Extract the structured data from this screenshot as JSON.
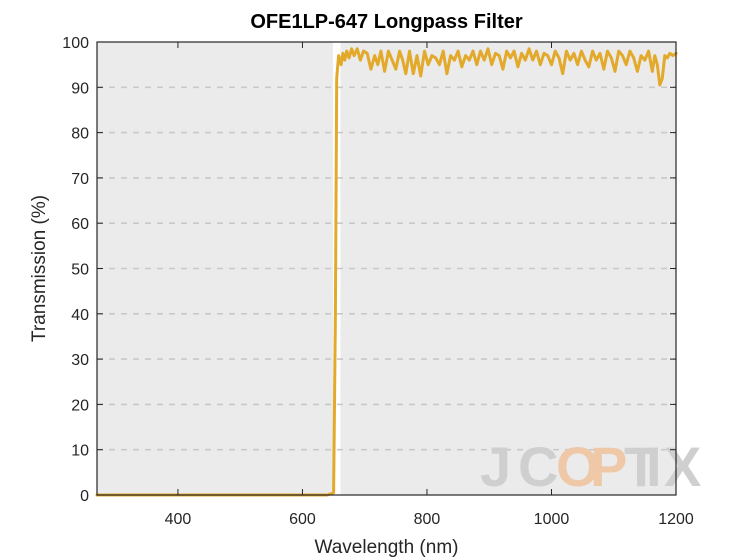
{
  "chart_data": {
    "type": "line",
    "title": "OFE1LP-647 Longpass Filter",
    "xlabel": "Wavelength (nm)",
    "ylabel": "Transmission (%)",
    "xlim": [
      270,
      1200
    ],
    "ylim": [
      0,
      100
    ],
    "xticks": [
      400,
      600,
      800,
      1000,
      1200
    ],
    "yticks": [
      0,
      10,
      20,
      30,
      40,
      50,
      60,
      70,
      80,
      90,
      100
    ],
    "grid": "horizontal dashed",
    "shaded_regions": [
      [
        270,
        649
      ],
      [
        661,
        1200
      ]
    ],
    "series": [
      {
        "name": "Transmission",
        "color": "#e3a92b",
        "x": [
          270,
          640,
          650,
          653,
          655,
          658,
          662,
          665,
          668,
          671,
          675,
          679,
          683,
          688,
          693,
          698,
          704,
          710,
          716,
          721,
          726,
          732,
          738,
          744,
          750,
          756,
          761,
          766,
          772,
          778,
          784,
          790,
          796,
          802,
          808,
          814,
          820,
          826,
          832,
          838,
          844,
          850,
          856,
          862,
          868,
          874,
          880,
          886,
          892,
          898,
          904,
          910,
          916,
          922,
          928,
          934,
          940,
          946,
          952,
          958,
          964,
          970,
          976,
          982,
          988,
          994,
          1000,
          1006,
          1012,
          1018,
          1024,
          1030,
          1036,
          1042,
          1048,
          1054,
          1060,
          1066,
          1072,
          1078,
          1084,
          1090,
          1096,
          1102,
          1108,
          1114,
          1120,
          1126,
          1132,
          1138,
          1144,
          1150,
          1156,
          1162,
          1166,
          1170,
          1174,
          1178,
          1182,
          1186,
          1190,
          1195,
          1200
        ],
        "y": [
          0,
          0,
          0.5,
          40,
          92,
          97,
          95,
          97.5,
          96,
          98,
          96.5,
          98.5,
          97,
          98.5,
          96,
          98,
          97.5,
          94,
          97,
          95,
          98,
          93.5,
          98,
          96,
          94,
          98,
          96,
          93,
          98,
          93,
          97,
          92.5,
          98,
          95,
          97,
          96.5,
          95,
          98,
          93,
          97,
          96,
          98,
          94.5,
          97,
          96,
          98,
          95,
          98,
          96,
          98.5,
          95,
          97.5,
          97,
          94,
          98,
          96.5,
          98,
          94.5,
          97.5,
          96,
          98.5,
          96,
          98,
          95,
          97.5,
          97,
          95,
          98,
          96.5,
          93,
          98,
          96,
          97.5,
          95,
          98,
          96,
          94.5,
          98,
          96,
          97.5,
          94,
          98,
          96.5,
          93.5,
          98,
          97,
          95,
          98,
          96.5,
          93.5,
          97,
          96,
          98,
          93.5,
          97,
          95,
          90.5,
          92,
          97,
          96.5,
          97.5,
          97,
          97.5
        ]
      }
    ],
    "watermark": "JCOPTIX"
  }
}
